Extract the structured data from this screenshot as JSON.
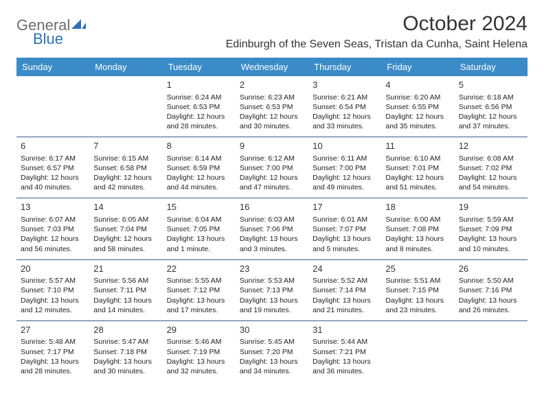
{
  "logo": {
    "text_gray": "General",
    "text_blue": "Blue"
  },
  "title": "October 2024",
  "location": "Edinburgh of the Seven Seas, Tristan da Cunha, Saint Helena",
  "colors": {
    "header_bg": "#3b8bc8",
    "header_fg": "#ffffff",
    "rule": "#3a5c80",
    "text": "#222222",
    "background": "#ffffff",
    "logo_gray": "#6d6d6d",
    "logo_blue": "#2d73b6"
  },
  "calendar": {
    "day_headers": [
      "Sunday",
      "Monday",
      "Tuesday",
      "Wednesday",
      "Thursday",
      "Friday",
      "Saturday"
    ],
    "weeks": [
      [
        null,
        null,
        {
          "n": "1",
          "sr": "6:24 AM",
          "ss": "6:53 PM",
          "dl": "12 hours and 28 minutes."
        },
        {
          "n": "2",
          "sr": "6:23 AM",
          "ss": "6:53 PM",
          "dl": "12 hours and 30 minutes."
        },
        {
          "n": "3",
          "sr": "6:21 AM",
          "ss": "6:54 PM",
          "dl": "12 hours and 33 minutes."
        },
        {
          "n": "4",
          "sr": "6:20 AM",
          "ss": "6:55 PM",
          "dl": "12 hours and 35 minutes."
        },
        {
          "n": "5",
          "sr": "6:18 AM",
          "ss": "6:56 PM",
          "dl": "12 hours and 37 minutes."
        }
      ],
      [
        {
          "n": "6",
          "sr": "6:17 AM",
          "ss": "6:57 PM",
          "dl": "12 hours and 40 minutes."
        },
        {
          "n": "7",
          "sr": "6:15 AM",
          "ss": "6:58 PM",
          "dl": "12 hours and 42 minutes."
        },
        {
          "n": "8",
          "sr": "6:14 AM",
          "ss": "6:59 PM",
          "dl": "12 hours and 44 minutes."
        },
        {
          "n": "9",
          "sr": "6:12 AM",
          "ss": "7:00 PM",
          "dl": "12 hours and 47 minutes."
        },
        {
          "n": "10",
          "sr": "6:11 AM",
          "ss": "7:00 PM",
          "dl": "12 hours and 49 minutes."
        },
        {
          "n": "11",
          "sr": "6:10 AM",
          "ss": "7:01 PM",
          "dl": "12 hours and 51 minutes."
        },
        {
          "n": "12",
          "sr": "6:08 AM",
          "ss": "7:02 PM",
          "dl": "12 hours and 54 minutes."
        }
      ],
      [
        {
          "n": "13",
          "sr": "6:07 AM",
          "ss": "7:03 PM",
          "dl": "12 hours and 56 minutes."
        },
        {
          "n": "14",
          "sr": "6:05 AM",
          "ss": "7:04 PM",
          "dl": "12 hours and 58 minutes."
        },
        {
          "n": "15",
          "sr": "6:04 AM",
          "ss": "7:05 PM",
          "dl": "13 hours and 1 minute."
        },
        {
          "n": "16",
          "sr": "6:03 AM",
          "ss": "7:06 PM",
          "dl": "13 hours and 3 minutes."
        },
        {
          "n": "17",
          "sr": "6:01 AM",
          "ss": "7:07 PM",
          "dl": "13 hours and 5 minutes."
        },
        {
          "n": "18",
          "sr": "6:00 AM",
          "ss": "7:08 PM",
          "dl": "13 hours and 8 minutes."
        },
        {
          "n": "19",
          "sr": "5:59 AM",
          "ss": "7:09 PM",
          "dl": "13 hours and 10 minutes."
        }
      ],
      [
        {
          "n": "20",
          "sr": "5:57 AM",
          "ss": "7:10 PM",
          "dl": "13 hours and 12 minutes."
        },
        {
          "n": "21",
          "sr": "5:56 AM",
          "ss": "7:11 PM",
          "dl": "13 hours and 14 minutes."
        },
        {
          "n": "22",
          "sr": "5:55 AM",
          "ss": "7:12 PM",
          "dl": "13 hours and 17 minutes."
        },
        {
          "n": "23",
          "sr": "5:53 AM",
          "ss": "7:13 PM",
          "dl": "13 hours and 19 minutes."
        },
        {
          "n": "24",
          "sr": "5:52 AM",
          "ss": "7:14 PM",
          "dl": "13 hours and 21 minutes."
        },
        {
          "n": "25",
          "sr": "5:51 AM",
          "ss": "7:15 PM",
          "dl": "13 hours and 23 minutes."
        },
        {
          "n": "26",
          "sr": "5:50 AM",
          "ss": "7:16 PM",
          "dl": "13 hours and 26 minutes."
        }
      ],
      [
        {
          "n": "27",
          "sr": "5:48 AM",
          "ss": "7:17 PM",
          "dl": "13 hours and 28 minutes."
        },
        {
          "n": "28",
          "sr": "5:47 AM",
          "ss": "7:18 PM",
          "dl": "13 hours and 30 minutes."
        },
        {
          "n": "29",
          "sr": "5:46 AM",
          "ss": "7:19 PM",
          "dl": "13 hours and 32 minutes."
        },
        {
          "n": "30",
          "sr": "5:45 AM",
          "ss": "7:20 PM",
          "dl": "13 hours and 34 minutes."
        },
        {
          "n": "31",
          "sr": "5:44 AM",
          "ss": "7:21 PM",
          "dl": "13 hours and 36 minutes."
        },
        null,
        null
      ]
    ],
    "labels": {
      "sunrise": "Sunrise:",
      "sunset": "Sunset:",
      "daylight": "Daylight:"
    }
  }
}
